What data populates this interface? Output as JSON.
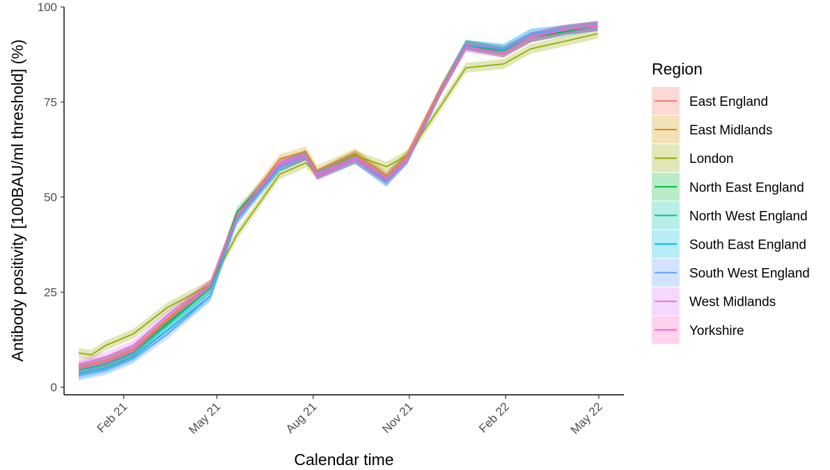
{
  "chart_data": {
    "type": "line",
    "title": "",
    "xlabel": "Calendar time",
    "ylabel": "Antibody positivity [100BAU/ml threshold] (%)",
    "x_ticks": [
      {
        "date": "2021-02-01",
        "label": "Feb 21"
      },
      {
        "date": "2021-05-01",
        "label": "May 21"
      },
      {
        "date": "2021-08-01",
        "label": "Aug 21"
      },
      {
        "date": "2021-11-01",
        "label": "Nov 21"
      },
      {
        "date": "2022-02-01",
        "label": "Feb 22"
      },
      {
        "date": "2022-05-01",
        "label": "May 22"
      }
    ],
    "xlim": [
      "2020-12-06",
      "2022-05-25"
    ],
    "y_ticks": [
      0,
      25,
      50,
      75,
      100
    ],
    "ylim": [
      -2,
      100
    ],
    "grid": false,
    "legend": {
      "title": "Region",
      "position": "right"
    },
    "series": [
      {
        "name": "East England",
        "color": "#F8766D",
        "dates": [
          "2020-12-20",
          "2021-01-15",
          "2021-02-10",
          "2021-03-15",
          "2021-04-25",
          "2021-05-20",
          "2021-06-30",
          "2021-07-25",
          "2021-08-05",
          "2021-09-10",
          "2021-10-10",
          "2021-10-30",
          "2021-12-01",
          "2021-12-25",
          "2022-01-30",
          "2022-02-25",
          "2022-03-30",
          "2022-04-30"
        ],
        "values": [
          5.5,
          7,
          10,
          18,
          27,
          44,
          59,
          61,
          56,
          61,
          55,
          61,
          78,
          90,
          88,
          92,
          94,
          95
        ]
      },
      {
        "name": "East Midlands",
        "color": "#D39200",
        "dates": [
          "2020-12-20",
          "2021-01-15",
          "2021-02-10",
          "2021-03-15",
          "2021-04-25",
          "2021-05-20",
          "2021-06-30",
          "2021-07-25",
          "2021-08-05",
          "2021-09-10",
          "2021-10-10",
          "2021-10-30",
          "2021-12-01",
          "2021-12-25",
          "2022-01-30",
          "2022-02-25",
          "2022-03-30",
          "2022-04-30"
        ],
        "values": [
          5,
          6.5,
          9.5,
          18,
          27,
          45,
          60,
          62,
          57,
          61.5,
          55.5,
          61,
          78.5,
          90,
          88.5,
          92,
          94,
          95
        ]
      },
      {
        "name": "London",
        "color": "#93AA00",
        "dates": [
          "2020-12-20",
          "2021-01-01",
          "2021-01-15",
          "2021-02-10",
          "2021-03-15",
          "2021-04-25",
          "2021-05-20",
          "2021-06-30",
          "2021-07-25",
          "2021-08-05",
          "2021-09-10",
          "2021-10-10",
          "2021-10-30",
          "2021-12-01",
          "2021-12-25",
          "2022-01-30",
          "2022-02-25",
          "2022-03-30",
          "2022-04-30"
        ],
        "values": [
          9,
          8.5,
          11,
          14,
          21,
          27,
          40,
          56,
          59,
          56,
          61,
          58,
          61,
          74,
          84,
          85,
          89,
          91,
          93
        ]
      },
      {
        "name": "North East England",
        "color": "#00BA38",
        "dates": [
          "2020-12-20",
          "2021-01-15",
          "2021-02-10",
          "2021-03-15",
          "2021-04-25",
          "2021-05-20",
          "2021-06-30",
          "2021-07-25",
          "2021-08-05",
          "2021-09-10",
          "2021-10-10",
          "2021-10-30",
          "2021-12-01",
          "2021-12-25",
          "2022-01-30",
          "2022-02-25",
          "2022-03-30",
          "2022-04-30"
        ],
        "values": [
          5,
          6.5,
          9.5,
          17,
          26,
          46,
          58,
          61,
          56,
          60,
          55,
          60,
          78,
          90,
          88,
          92,
          93.5,
          95
        ]
      },
      {
        "name": "North West England",
        "color": "#00C19F",
        "dates": [
          "2020-12-20",
          "2021-01-15",
          "2021-02-10",
          "2021-03-15",
          "2021-04-25",
          "2021-05-20",
          "2021-06-30",
          "2021-07-25",
          "2021-08-05",
          "2021-09-10",
          "2021-10-10",
          "2021-10-30",
          "2021-12-01",
          "2021-12-25",
          "2022-01-30",
          "2022-02-25",
          "2022-03-30",
          "2022-04-30"
        ],
        "values": [
          4.5,
          6,
          9,
          16.5,
          26,
          45,
          58,
          61,
          56,
          60.5,
          54.5,
          60,
          78,
          90,
          88.5,
          92,
          94,
          95
        ]
      },
      {
        "name": "South East England",
        "color": "#00B9E3",
        "dates": [
          "2020-12-20",
          "2021-01-15",
          "2021-02-10",
          "2021-03-15",
          "2021-04-25",
          "2021-05-20",
          "2021-06-30",
          "2021-07-25",
          "2021-08-05",
          "2021-09-10",
          "2021-10-10",
          "2021-10-30",
          "2021-12-01",
          "2021-12-25",
          "2022-01-30",
          "2022-02-25",
          "2022-03-30",
          "2022-04-30"
        ],
        "values": [
          3.5,
          5,
          8,
          15,
          24,
          44,
          58,
          61,
          56,
          60,
          54,
          60,
          78,
          90,
          89,
          93,
          94,
          95
        ]
      },
      {
        "name": "South West England",
        "color": "#619CFF",
        "dates": [
          "2020-12-20",
          "2021-01-15",
          "2021-02-10",
          "2021-03-15",
          "2021-04-25",
          "2021-05-20",
          "2021-06-30",
          "2021-07-25",
          "2021-08-05",
          "2021-09-10",
          "2021-10-10",
          "2021-10-30",
          "2021-12-01",
          "2021-12-25",
          "2022-01-30",
          "2022-02-25",
          "2022-03-30",
          "2022-04-30"
        ],
        "values": [
          3,
          4.5,
          7.5,
          14,
          24,
          44,
          58,
          61,
          56,
          60,
          54,
          60,
          78,
          90,
          89,
          93,
          94,
          95
        ]
      },
      {
        "name": "West Midlands",
        "color": "#DB72FB",
        "dates": [
          "2020-12-20",
          "2021-01-15",
          "2021-02-10",
          "2021-03-15",
          "2021-04-25",
          "2021-05-20",
          "2021-06-30",
          "2021-07-25",
          "2021-08-05",
          "2021-09-10",
          "2021-10-10",
          "2021-10-30",
          "2021-12-01",
          "2021-12-25",
          "2022-01-30",
          "2022-02-25",
          "2022-03-30",
          "2022-04-30"
        ],
        "values": [
          6,
          8,
          11,
          19,
          27,
          45,
          59,
          61,
          56,
          60.5,
          55,
          60.5,
          78,
          89.5,
          88,
          92,
          94,
          95
        ]
      },
      {
        "name": "Yorkshire",
        "color": "#FF61C3",
        "dates": [
          "2020-12-20",
          "2021-01-15",
          "2021-02-10",
          "2021-03-15",
          "2021-04-25",
          "2021-05-20",
          "2021-06-30",
          "2021-07-25",
          "2021-08-05",
          "2021-09-10",
          "2021-10-10",
          "2021-10-30",
          "2021-12-01",
          "2021-12-25",
          "2022-01-30",
          "2022-02-25",
          "2022-03-30",
          "2022-04-30"
        ],
        "values": [
          5,
          6.5,
          9.5,
          17.5,
          27,
          45,
          58.5,
          61,
          55.5,
          60,
          54.5,
          60,
          78,
          89.5,
          88,
          92,
          94,
          95
        ]
      }
    ]
  }
}
